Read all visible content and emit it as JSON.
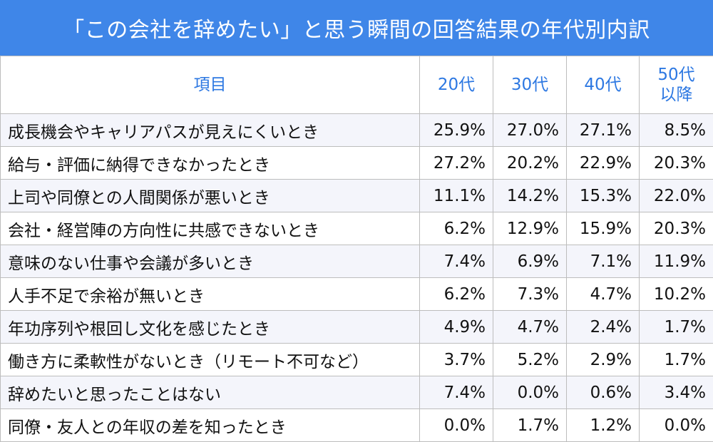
{
  "title": "「この会社を辞めたい」と思う瞬間の回答結果の年代別内訳",
  "colors": {
    "header_bg": "#3f86e8",
    "header_text": "#2d78e2",
    "stripe": "#f4f5fb"
  },
  "table": {
    "headers": {
      "item": "項目",
      "c20": "20代",
      "c30": "30代",
      "c40": "40代",
      "c50_line1": "50代",
      "c50_line2": "以降"
    },
    "rows": [
      {
        "item": "成長機会やキャリアパスが見えにくいとき",
        "c20": "25.9%",
        "c30": "27.0%",
        "c40": "27.1%",
        "c50": "8.5%"
      },
      {
        "item": "給与・評価に納得できなかったとき",
        "c20": "27.2%",
        "c30": "20.2%",
        "c40": "22.9%",
        "c50": "20.3%"
      },
      {
        "item": "上司や同僚との人間関係が悪いとき",
        "c20": "11.1%",
        "c30": "14.2%",
        "c40": "15.3%",
        "c50": "22.0%"
      },
      {
        "item": "会社・経営陣の方向性に共感できないとき",
        "c20": "6.2%",
        "c30": "12.9%",
        "c40": "15.9%",
        "c50": "20.3%"
      },
      {
        "item": "意味のない仕事や会議が多いとき",
        "c20": "7.4%",
        "c30": "6.9%",
        "c40": "7.1%",
        "c50": "11.9%"
      },
      {
        "item": "人手不足で余裕が無いとき",
        "c20": "6.2%",
        "c30": "7.3%",
        "c40": "4.7%",
        "c50": "10.2%"
      },
      {
        "item": "年功序列や根回し文化を感じたとき",
        "c20": "4.9%",
        "c30": "4.7%",
        "c40": "2.4%",
        "c50": "1.7%"
      },
      {
        "item": "働き方に柔軟性がないとき（リモート不可など）",
        "c20": "3.7%",
        "c30": "5.2%",
        "c40": "2.9%",
        "c50": "1.7%"
      },
      {
        "item": "辞めたいと思ったことはない",
        "c20": "7.4%",
        "c30": "0.0%",
        "c40": "0.6%",
        "c50": "3.4%"
      },
      {
        "item": "同僚・友人との年収の差を知ったとき",
        "c20": "0.0%",
        "c30": "1.7%",
        "c40": "1.2%",
        "c50": "0.0%"
      }
    ]
  }
}
